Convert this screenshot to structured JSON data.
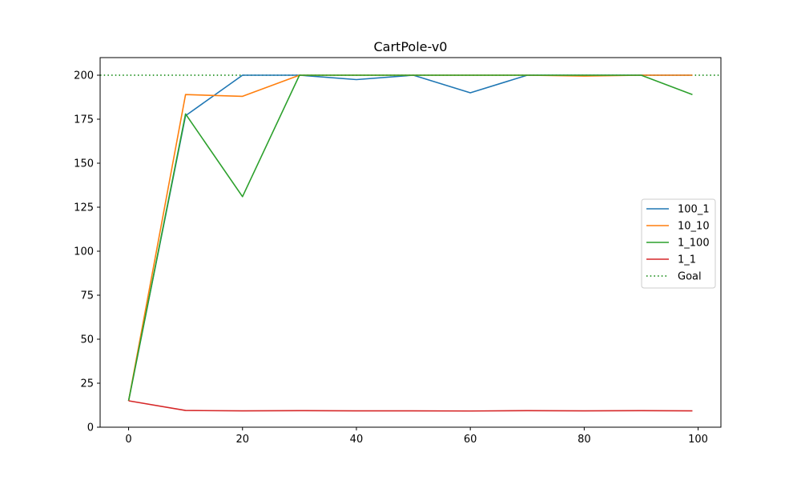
{
  "chart_data": {
    "type": "line",
    "title": "CartPole-v0",
    "xlabel": "",
    "ylabel": "",
    "xlim": [
      -5,
      104
    ],
    "ylim": [
      0,
      210
    ],
    "x_ticks": [
      0,
      20,
      40,
      60,
      80,
      100
    ],
    "y_ticks": [
      0,
      25,
      50,
      75,
      100,
      125,
      150,
      175,
      200
    ],
    "x_tick_labels": [
      "0",
      "20",
      "40",
      "60",
      "80",
      "100"
    ],
    "y_tick_labels": [
      "0",
      "25",
      "50",
      "75",
      "100",
      "125",
      "150",
      "175",
      "200"
    ],
    "grid": false,
    "legend_position": "center-right",
    "x": [
      0,
      10,
      20,
      30,
      40,
      50,
      60,
      70,
      80,
      90,
      99
    ],
    "series": [
      {
        "name": "100_1",
        "color": "#1f77b4",
        "style": "solid",
        "values": [
          15,
          177,
          200,
          200,
          197.5,
          200,
          190,
          200,
          200,
          200,
          200
        ]
      },
      {
        "name": "10_10",
        "color": "#ff7f0e",
        "style": "solid",
        "values": [
          15,
          189,
          188,
          200,
          200,
          200,
          200,
          200,
          199.5,
          200,
          200
        ]
      },
      {
        "name": "1_100",
        "color": "#2ca02c",
        "style": "solid",
        "values": [
          15,
          178,
          131,
          200,
          200,
          200,
          200,
          200,
          200,
          200,
          189
        ]
      },
      {
        "name": "1_1",
        "color": "#d62728",
        "style": "solid",
        "values": [
          15,
          9.5,
          9.3,
          9.4,
          9.3,
          9.3,
          9.2,
          9.4,
          9.3,
          9.4,
          9.3
        ]
      }
    ],
    "goal": {
      "name": "Goal",
      "value": 200,
      "color": "#008000",
      "style": "dotted"
    }
  }
}
